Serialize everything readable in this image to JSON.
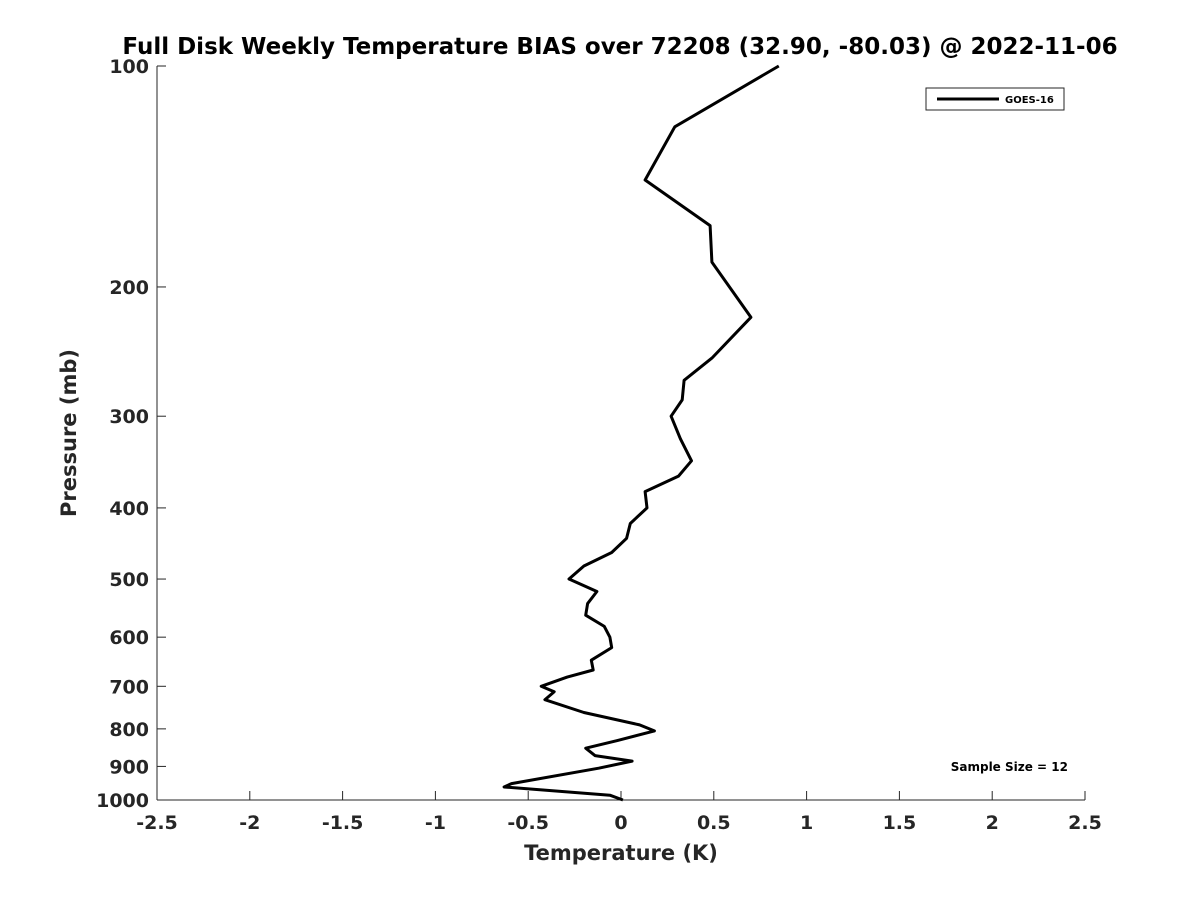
{
  "chart_data": {
    "type": "line",
    "title": "Full Disk Weekly Temperature BIAS over 72208 (32.90, -80.03) @ 2022-11-06",
    "xlabel": "Temperature (K)",
    "ylabel": "Pressure (mb)",
    "xlim": [
      -2.5,
      2.5
    ],
    "ylim": [
      1000,
      100
    ],
    "yscale": "log",
    "x_ticks": [
      -2.5,
      -2,
      -1.5,
      -1,
      -0.5,
      0,
      0.5,
      1,
      1.5,
      2,
      2.5
    ],
    "x_tick_labels": [
      "-2.5",
      "-2",
      "-1.5",
      "-1",
      "-0.5",
      "0",
      "0.5",
      "1",
      "1.5",
      "2",
      "2.5"
    ],
    "y_ticks": [
      100,
      200,
      300,
      400,
      500,
      600,
      700,
      800,
      900,
      1000
    ],
    "y_tick_labels": [
      "100",
      "200",
      "300",
      "400",
      "500",
      "600",
      "700",
      "800",
      "900",
      "1000"
    ],
    "grid": false,
    "legend_position": "top-right",
    "series": [
      {
        "name": "GOES-16",
        "color": "#000000",
        "points": [
          {
            "x": 0.85,
            "y": 100
          },
          {
            "x": 0.29,
            "y": 121
          },
          {
            "x": 0.13,
            "y": 143
          },
          {
            "x": 0.48,
            "y": 165
          },
          {
            "x": 0.49,
            "y": 185
          },
          {
            "x": 0.7,
            "y": 220
          },
          {
            "x": 0.49,
            "y": 250
          },
          {
            "x": 0.34,
            "y": 268
          },
          {
            "x": 0.33,
            "y": 285
          },
          {
            "x": 0.27,
            "y": 300
          },
          {
            "x": 0.32,
            "y": 322
          },
          {
            "x": 0.38,
            "y": 345
          },
          {
            "x": 0.31,
            "y": 362
          },
          {
            "x": 0.13,
            "y": 380
          },
          {
            "x": 0.14,
            "y": 400
          },
          {
            "x": 0.05,
            "y": 420
          },
          {
            "x": 0.03,
            "y": 440
          },
          {
            "x": -0.05,
            "y": 460
          },
          {
            "x": -0.2,
            "y": 480
          },
          {
            "x": -0.28,
            "y": 500
          },
          {
            "x": -0.13,
            "y": 520
          },
          {
            "x": -0.18,
            "y": 540
          },
          {
            "x": -0.19,
            "y": 560
          },
          {
            "x": -0.09,
            "y": 580
          },
          {
            "x": -0.06,
            "y": 600
          },
          {
            "x": -0.05,
            "y": 620
          },
          {
            "x": -0.16,
            "y": 645
          },
          {
            "x": -0.15,
            "y": 665
          },
          {
            "x": -0.29,
            "y": 680
          },
          {
            "x": -0.43,
            "y": 700
          },
          {
            "x": -0.36,
            "y": 712
          },
          {
            "x": -0.41,
            "y": 730
          },
          {
            "x": -0.2,
            "y": 760
          },
          {
            "x": 0.1,
            "y": 790
          },
          {
            "x": 0.18,
            "y": 805
          },
          {
            "x": -0.02,
            "y": 830
          },
          {
            "x": -0.19,
            "y": 850
          },
          {
            "x": -0.14,
            "y": 870
          },
          {
            "x": 0.06,
            "y": 885
          },
          {
            "x": -0.12,
            "y": 905
          },
          {
            "x": -0.59,
            "y": 950
          },
          {
            "x": -0.63,
            "y": 960
          },
          {
            "x": -0.06,
            "y": 985
          },
          {
            "x": 0.01,
            "y": 1000
          }
        ]
      }
    ],
    "annotations": [
      {
        "text": "Sample Size = 12"
      }
    ]
  }
}
